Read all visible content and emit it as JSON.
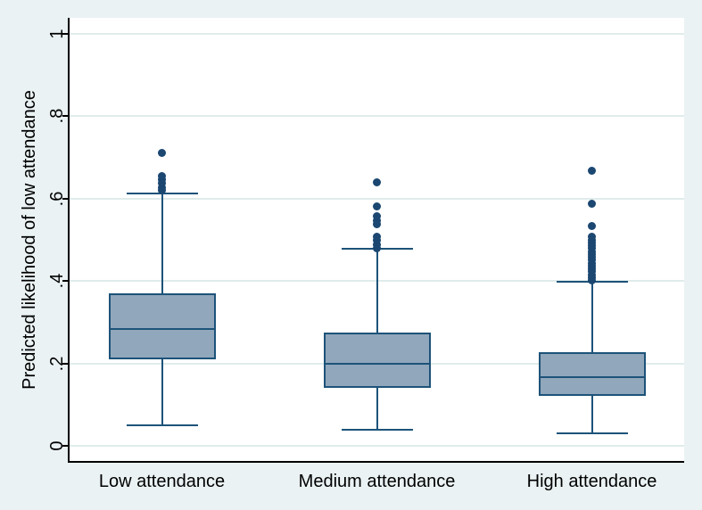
{
  "figure": {
    "background_color": "#eaf2f3",
    "plot_background_color": "#ffffff",
    "axis_color": "#000000",
    "grid_color": "#dfeceb",
    "box_fill_color": "#91a7bb",
    "box_line_color": "#1d5379",
    "outlier_dot_color": "#1b4771"
  },
  "chart_data": {
    "type": "box",
    "title": "",
    "xlabel": "",
    "ylabel": "Predicted likelihood of low attendance",
    "ylim": [
      0,
      1
    ],
    "grid": "horizontal",
    "legend": "none",
    "yticks": [
      {
        "label": "0",
        "value": 0
      },
      {
        "label": ".2",
        "value": 0.2
      },
      {
        "label": ".4",
        "value": 0.4
      },
      {
        "label": ".6",
        "value": 0.6
      },
      {
        "label": ".8",
        "value": 0.8
      },
      {
        "label": "1",
        "value": 1
      }
    ],
    "categories": [
      "Low attendance",
      "Medium attendance",
      "High attendance"
    ],
    "series": [
      {
        "name": "Low attendance",
        "whisker_low": 0.05,
        "q1": 0.209,
        "median": 0.283,
        "q3": 0.369,
        "whisker_high": 0.612,
        "outliers": [
          0.62,
          0.627,
          0.636,
          0.645,
          0.654,
          0.711
        ]
      },
      {
        "name": "Medium attendance",
        "whisker_low": 0.04,
        "q1": 0.141,
        "median": 0.2,
        "q3": 0.274,
        "whisker_high": 0.477,
        "outliers": [
          0.48,
          0.488,
          0.498,
          0.507,
          0.537,
          0.547,
          0.557,
          0.58,
          0.64
        ]
      },
      {
        "name": "High attendance",
        "whisker_low": 0.031,
        "q1": 0.121,
        "median": 0.166,
        "q3": 0.227,
        "whisker_high": 0.398,
        "outliers": [
          0.401,
          0.408,
          0.415,
          0.422,
          0.429,
          0.436,
          0.443,
          0.45,
          0.457,
          0.464,
          0.471,
          0.478,
          0.485,
          0.492,
          0.499,
          0.506,
          0.533,
          0.587,
          0.668
        ]
      }
    ]
  }
}
